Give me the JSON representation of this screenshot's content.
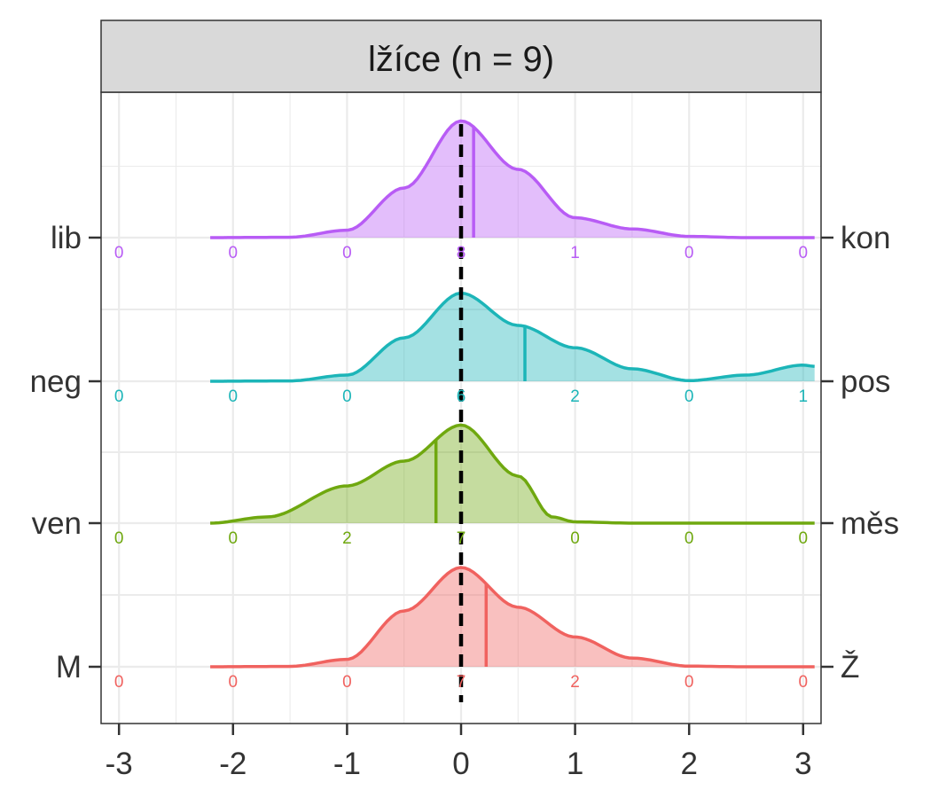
{
  "chart_data": {
    "type": "ridgeline",
    "title": "lžíce (n = 9)",
    "xlim": [
      -3,
      3
    ],
    "x_ticks": [
      -3,
      -2,
      -1,
      0,
      1,
      2,
      3
    ],
    "reference_line_x": 0,
    "grid": true,
    "count_positions": [
      -3,
      -2,
      -1,
      0,
      1,
      2,
      3
    ],
    "rows": [
      {
        "left_label": "lib",
        "right_label": "kon",
        "color": "#B85CF5",
        "counts": [
          0,
          0,
          0,
          8,
          1,
          0,
          0
        ],
        "mean": 0.11,
        "density": [
          [
            -2.2,
            0
          ],
          [
            -1.5,
            0.003
          ],
          [
            -1.0,
            0.06
          ],
          [
            -0.5,
            0.4
          ],
          [
            0,
            0.94
          ],
          [
            0.5,
            0.55
          ],
          [
            1.0,
            0.16
          ],
          [
            1.5,
            0.07
          ],
          [
            2.0,
            0.01
          ],
          [
            2.5,
            0
          ],
          [
            3.1,
            0
          ]
        ]
      },
      {
        "left_label": "neg",
        "right_label": "pos",
        "color": "#1CB5B8",
        "counts": [
          0,
          0,
          0,
          6,
          2,
          0,
          1
        ],
        "mean": 0.56,
        "density": [
          [
            -2.2,
            0
          ],
          [
            -1.5,
            0.003
          ],
          [
            -1.0,
            0.05
          ],
          [
            -0.5,
            0.35
          ],
          [
            0,
            0.71
          ],
          [
            0.5,
            0.45
          ],
          [
            1.0,
            0.27
          ],
          [
            1.5,
            0.1
          ],
          [
            2.0,
            0.005
          ],
          [
            2.5,
            0.05
          ],
          [
            3.0,
            0.13
          ],
          [
            3.1,
            0.12
          ]
        ]
      },
      {
        "left_label": "ven",
        "right_label": "měs",
        "color": "#6FA80F",
        "counts": [
          0,
          0,
          2,
          7,
          0,
          0,
          0
        ],
        "mean": -0.22,
        "density": [
          [
            -2.2,
            0
          ],
          [
            -1.7,
            0.05
          ],
          [
            -1.0,
            0.3
          ],
          [
            -0.5,
            0.5
          ],
          [
            0,
            0.79
          ],
          [
            0.5,
            0.38
          ],
          [
            0.8,
            0.05
          ],
          [
            1.0,
            0.01
          ],
          [
            1.5,
            0
          ],
          [
            3.1,
            0
          ]
        ]
      },
      {
        "left_label": "M",
        "right_label": "Ž",
        "color": "#F0625F",
        "counts": [
          0,
          0,
          0,
          7,
          2,
          0,
          0
        ],
        "mean": 0.22,
        "density": [
          [
            -2.2,
            0
          ],
          [
            -1.5,
            0.003
          ],
          [
            -1.0,
            0.06
          ],
          [
            -0.5,
            0.45
          ],
          [
            0,
            0.8
          ],
          [
            0.5,
            0.48
          ],
          [
            1.0,
            0.24
          ],
          [
            1.5,
            0.07
          ],
          [
            2.0,
            0.005
          ],
          [
            2.5,
            0
          ],
          [
            3.1,
            0
          ]
        ]
      }
    ]
  }
}
